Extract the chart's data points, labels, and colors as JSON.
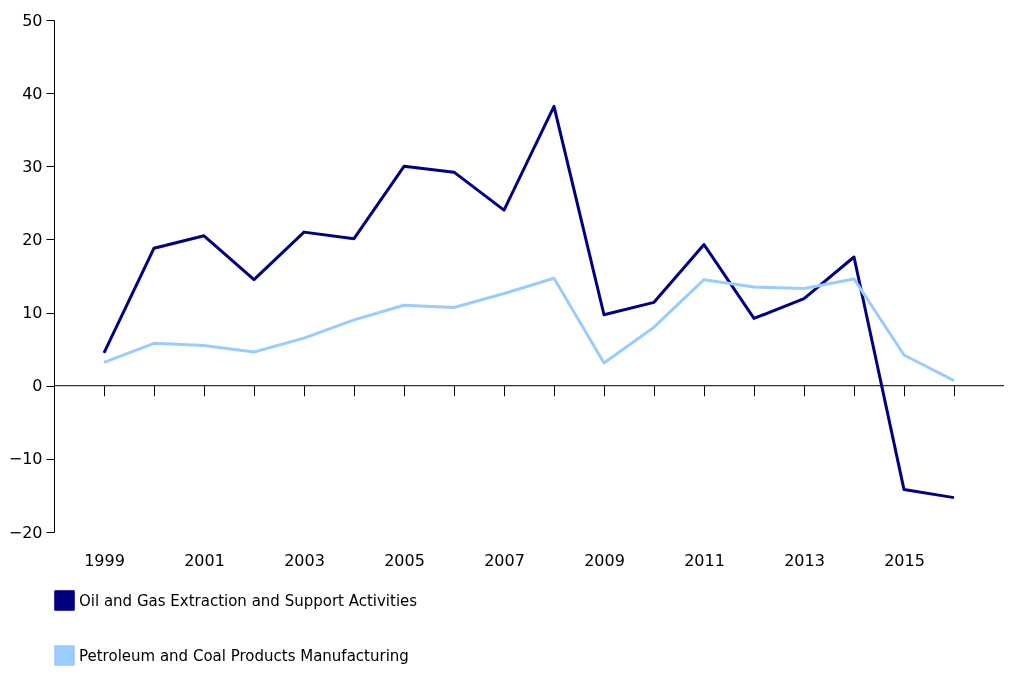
{
  "chart_data": {
    "type": "line",
    "categories": [
      "1999",
      null,
      "2001",
      null,
      "2003",
      null,
      "2005",
      null,
      "2007",
      null,
      "2009",
      null,
      "2011",
      null,
      "2013",
      null,
      "2015",
      null
    ],
    "series": [
      {
        "name": "Oil and Gas Extraction and Support Activities",
        "color": "#000080",
        "values": [
          4.5,
          18.8,
          20.5,
          14.5,
          21,
          20.1,
          30,
          29.2,
          24,
          38.2,
          9.7,
          11.4,
          19.3,
          9.2,
          11.9,
          17.6,
          -14.2,
          -15.3
        ]
      },
      {
        "name": "Petroleum and Coal Products Manufacturing",
        "color": "#99ccff",
        "values": [
          3.2,
          5.8,
          5.5,
          4.6,
          6.5,
          9,
          11,
          10.7,
          12.6,
          14.7,
          3.1,
          8,
          14.5,
          13.5,
          13.3,
          14.6,
          4.2,
          0.7
        ]
      }
    ],
    "ref_lines": [
      {
        "axis": "y",
        "value": 0
      }
    ],
    "ylim": [
      -20,
      50
    ],
    "yticks": [
      -20,
      -10,
      0,
      10,
      20,
      30,
      40,
      50
    ],
    "grid": false,
    "legend": "bottom",
    "marker": "none",
    "line_style": "solid"
  }
}
